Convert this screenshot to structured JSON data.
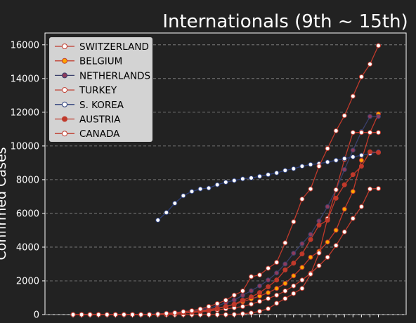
{
  "chart_data": {
    "type": "line",
    "title": "Internationals (9th ~ 15th)",
    "ylabel": "Confirmed Cases",
    "xlabel": "",
    "ylim": [
      0,
      16700
    ],
    "yticks": [
      0,
      2000,
      4000,
      6000,
      8000,
      10000,
      12000,
      14000,
      16000
    ],
    "ytick_labels": [
      "0",
      "2000",
      "4000",
      "6000",
      "8000",
      "10000",
      "12000",
      "14000",
      "16000"
    ],
    "grid": "horizontal dashed",
    "legend_position": "top-left",
    "x_count": 37,
    "series": [
      {
        "name": "SWITZERLAND",
        "color": "#c0392b",
        "face": "#ffffff",
        "start": 0,
        "values": [
          0,
          0,
          0,
          0,
          0,
          0,
          0,
          0,
          0,
          0,
          10,
          30,
          60,
          90,
          120,
          160,
          210,
          270,
          340,
          400,
          480,
          620,
          780,
          950,
          1150,
          1400,
          1700,
          2050,
          2450,
          2900,
          3400,
          4100,
          4900,
          5700,
          6400,
          7450,
          7474
        ]
      },
      {
        "name": "BELGIUM",
        "color": "#c0392b",
        "face": "#ffa500",
        "start": 0,
        "values": [
          0,
          0,
          0,
          0,
          0,
          0,
          0,
          0,
          0,
          0,
          20,
          50,
          80,
          110,
          160,
          230,
          300,
          380,
          480,
          600,
          760,
          930,
          1100,
          1300,
          1550,
          1850,
          2300,
          2800,
          3400,
          3750,
          4300,
          5000,
          6250,
          7300,
          9150,
          10800,
          11900
        ]
      },
      {
        "name": "NETHERLANDS",
        "color": "#3a3f6b",
        "face": "#8e3b5c",
        "start": 0,
        "values": [
          0,
          0,
          0,
          0,
          0,
          0,
          0,
          0,
          0,
          20,
          40,
          80,
          120,
          170,
          220,
          290,
          380,
          510,
          700,
          860,
          1140,
          1410,
          1700,
          2050,
          2470,
          3000,
          3640,
          4200,
          4750,
          5550,
          6400,
          7400,
          8600,
          9750,
          10850,
          11750,
          11750
        ]
      },
      {
        "name": "TURKEY",
        "color": "#c0392b",
        "face": "#ffffff",
        "start": 0,
        "values": [
          0,
          0,
          0,
          0,
          0,
          0,
          0,
          0,
          0,
          0,
          0,
          0,
          0,
          0,
          0,
          0,
          0,
          0,
          0,
          10,
          50,
          100,
          190,
          350,
          670,
          950,
          1250,
          1550,
          2400,
          3650,
          5700,
          7400,
          9200,
          10800,
          10800,
          10800,
          10800
        ]
      },
      {
        "name": "S. KOREA",
        "color": "#2c3e7a",
        "face": "#ffffff",
        "start": 10,
        "values": [
          5600,
          6050,
          6600,
          7050,
          7300,
          7450,
          7500,
          7700,
          7850,
          7950,
          8050,
          8100,
          8200,
          8300,
          8400,
          8550,
          8650,
          8800,
          8900,
          8950,
          9050,
          9150,
          9250,
          9350,
          9450,
          9550,
          9650
        ]
      },
      {
        "name": "AUSTRIA",
        "color": "#c0392b",
        "face": "#c0392b",
        "start": 0,
        "values": [
          0,
          0,
          0,
          0,
          0,
          0,
          0,
          0,
          0,
          0,
          20,
          40,
          70,
          100,
          140,
          190,
          260,
          350,
          480,
          620,
          850,
          1050,
          1300,
          1650,
          2050,
          2650,
          3050,
          3600,
          4450,
          5300,
          5600,
          6900,
          7700,
          8300,
          8800,
          9650,
          9618
        ]
      },
      {
        "name": "CANADA",
        "color": "#c0392b",
        "face": "#ffffff",
        "start": 0,
        "values": [
          0,
          0,
          0,
          0,
          0,
          0,
          0,
          0,
          0,
          0,
          30,
          70,
          110,
          170,
          230,
          330,
          480,
          650,
          850,
          1150,
          1400,
          2250,
          2350,
          2750,
          3100,
          4250,
          5500,
          6850,
          7450,
          8800,
          9850,
          10900,
          11800,
          12950,
          14100,
          14850,
          15950
        ]
      }
    ]
  }
}
